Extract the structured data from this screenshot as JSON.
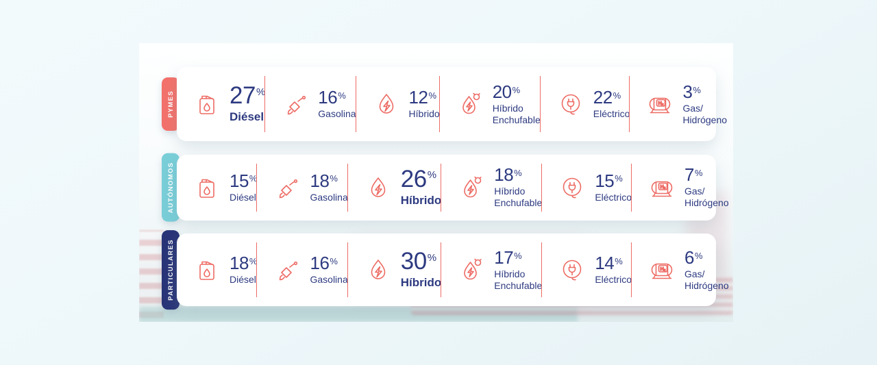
{
  "colors": {
    "coral": "#ed6b64",
    "navy_text": "#2d3a80",
    "card_bg": "#ffffff",
    "tab_pymes": "#f4716b",
    "tab_autonomos": "#79ced8",
    "tab_particulares": "#283477"
  },
  "percent_sign": "%",
  "rows": [
    {
      "group": "PYMES",
      "tab_color": "#f4716b",
      "items": [
        {
          "icon": "diesel-can-icon",
          "value": "27",
          "label": "Diésel",
          "highlight": true
        },
        {
          "icon": "fuel-nozzle-icon",
          "value": "16",
          "label": "Gasolina",
          "highlight": false
        },
        {
          "icon": "hybrid-drop-icon",
          "value": "12",
          "label": "Híbrido",
          "highlight": false
        },
        {
          "icon": "plugin-hybrid-icon",
          "value": "20",
          "label": "Híbrido\nEnchufable",
          "highlight": false
        },
        {
          "icon": "electric-plug-icon",
          "value": "22",
          "label": "Eléctrico",
          "highlight": false
        },
        {
          "icon": "hydrogen-tank-icon",
          "value": "3",
          "label": "Gas/\nHidrógeno",
          "highlight": false
        }
      ]
    },
    {
      "group": "AUTÓNOMOS",
      "tab_color": "#79ced8",
      "items": [
        {
          "icon": "diesel-can-icon",
          "value": "15",
          "label": "Diésel",
          "highlight": false
        },
        {
          "icon": "fuel-nozzle-icon",
          "value": "18",
          "label": "Gasolina",
          "highlight": false
        },
        {
          "icon": "hybrid-drop-icon",
          "value": "26",
          "label": "Híbrido",
          "highlight": true
        },
        {
          "icon": "plugin-hybrid-icon",
          "value": "18",
          "label": "Híbrido\nEnchufable",
          "highlight": false
        },
        {
          "icon": "electric-plug-icon",
          "value": "15",
          "label": "Eléctrico",
          "highlight": false
        },
        {
          "icon": "hydrogen-tank-icon",
          "value": "7",
          "label": "Gas/\nHidrógeno",
          "highlight": false
        }
      ]
    },
    {
      "group": "PARTICULARES",
      "tab_color": "#283477",
      "items": [
        {
          "icon": "diesel-can-icon",
          "value": "18",
          "label": "Diésel",
          "highlight": false
        },
        {
          "icon": "fuel-nozzle-icon",
          "value": "16",
          "label": "Gasolina",
          "highlight": false
        },
        {
          "icon": "hybrid-drop-icon",
          "value": "30",
          "label": "Híbrido",
          "highlight": true
        },
        {
          "icon": "plugin-hybrid-icon",
          "value": "17",
          "label": "Híbrido\nEnchufable",
          "highlight": false
        },
        {
          "icon": "electric-plug-icon",
          "value": "14",
          "label": "Eléctrico",
          "highlight": false
        },
        {
          "icon": "hydrogen-tank-icon",
          "value": "6",
          "label": "Gas/\nHidrógeno",
          "highlight": false
        }
      ]
    }
  ],
  "chart_data": {
    "type": "table",
    "title": "",
    "unit": "%",
    "categories": [
      "Diésel",
      "Gasolina",
      "Híbrido",
      "Híbrido Enchufable",
      "Eléctrico",
      "Gas/Hidrógeno"
    ],
    "series": [
      {
        "name": "PYMES",
        "values": [
          27,
          16,
          12,
          20,
          22,
          3
        ]
      },
      {
        "name": "AUTÓNOMOS",
        "values": [
          15,
          18,
          26,
          18,
          15,
          7
        ]
      },
      {
        "name": "PARTICULARES",
        "values": [
          18,
          16,
          30,
          17,
          14,
          6
        ]
      }
    ],
    "legend_position": "left-tabs",
    "highlighted_values": [
      {
        "series": "PYMES",
        "category": "Diésel",
        "value": 27
      },
      {
        "series": "AUTÓNOMOS",
        "category": "Híbrido",
        "value": 26
      },
      {
        "series": "PARTICULARES",
        "category": "Híbrido",
        "value": 30
      }
    ]
  }
}
